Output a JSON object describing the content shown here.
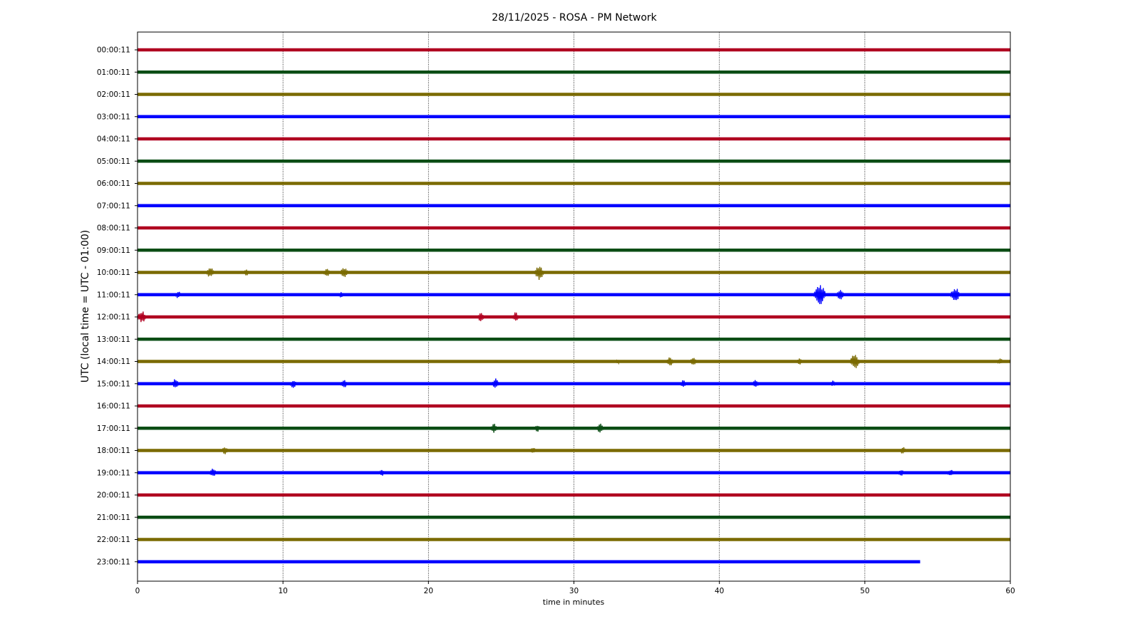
{
  "chart_data": {
    "type": "line",
    "title": "28/11/2025 - ROSA - PM Network",
    "xlabel": "time in minutes",
    "ylabel": "UTC (local time = UTC - 01:00)",
    "xlim": [
      0,
      60
    ],
    "x_ticks": [
      0,
      10,
      20,
      30,
      40,
      50,
      60
    ],
    "grid": "vertical dotted at x ticks",
    "color_cycle": [
      "#b00020",
      "#0a4d14",
      "#7a6a00",
      "#0000ff"
    ],
    "rows": [
      {
        "label": "00:00:11",
        "end_min": 60,
        "events": []
      },
      {
        "label": "01:00:11",
        "end_min": 60,
        "events": []
      },
      {
        "label": "02:00:11",
        "end_min": 60,
        "events": []
      },
      {
        "label": "03:00:11",
        "end_min": 60,
        "events": []
      },
      {
        "label": "04:00:11",
        "end_min": 60,
        "events": []
      },
      {
        "label": "05:00:11",
        "end_min": 60,
        "events": []
      },
      {
        "label": "06:00:11",
        "end_min": 60,
        "events": []
      },
      {
        "label": "07:00:11",
        "end_min": 60,
        "events": []
      },
      {
        "label": "08:00:11",
        "end_min": 60,
        "events": []
      },
      {
        "label": "09:00:11",
        "end_min": 60,
        "events": []
      },
      {
        "label": "10:00:11",
        "end_min": 60,
        "events": [
          [
            5,
            0.5
          ],
          [
            7.5,
            0.3
          ],
          [
            13,
            0.4
          ],
          [
            14.2,
            0.5
          ],
          [
            27.6,
            0.7
          ]
        ]
      },
      {
        "label": "11:00:11",
        "end_min": 60,
        "events": [
          [
            2.8,
            0.35
          ],
          [
            14,
            0.3
          ],
          [
            46.9,
            1.0
          ],
          [
            48.3,
            0.5
          ],
          [
            56.2,
            0.7
          ]
        ]
      },
      {
        "label": "12:00:11",
        "end_min": 60,
        "events": [
          [
            0.3,
            0.6
          ],
          [
            23.6,
            0.45
          ],
          [
            26,
            0.45
          ]
        ]
      },
      {
        "label": "13:00:11",
        "end_min": 60,
        "events": []
      },
      {
        "label": "14:00:11",
        "end_min": 60,
        "events": [
          [
            33,
            0.2
          ],
          [
            36.6,
            0.45
          ],
          [
            38.2,
            0.4
          ],
          [
            45.5,
            0.3
          ],
          [
            49.3,
            0.7
          ],
          [
            59.3,
            0.3
          ]
        ]
      },
      {
        "label": "15:00:11",
        "end_min": 60,
        "events": [
          [
            2.6,
            0.45
          ],
          [
            10.7,
            0.4
          ],
          [
            14.2,
            0.45
          ],
          [
            24.6,
            0.5
          ],
          [
            37.5,
            0.35
          ],
          [
            42.5,
            0.4
          ],
          [
            47.8,
            0.3
          ]
        ]
      },
      {
        "label": "16:00:11",
        "end_min": 60,
        "events": []
      },
      {
        "label": "17:00:11",
        "end_min": 60,
        "events": [
          [
            24.5,
            0.45
          ],
          [
            27.5,
            0.35
          ],
          [
            31.8,
            0.45
          ]
        ]
      },
      {
        "label": "18:00:11",
        "end_min": 60,
        "events": [
          [
            6,
            0.35
          ],
          [
            27.2,
            0.3
          ],
          [
            52.6,
            0.35
          ]
        ]
      },
      {
        "label": "19:00:11",
        "end_min": 60,
        "events": [
          [
            5.2,
            0.45
          ],
          [
            16.8,
            0.3
          ],
          [
            52.5,
            0.3
          ],
          [
            55.9,
            0.35
          ]
        ]
      },
      {
        "label": "20:00:11",
        "end_min": 60,
        "events": []
      },
      {
        "label": "21:00:11",
        "end_min": 60,
        "events": []
      },
      {
        "label": "22:00:11",
        "end_min": 60,
        "events": []
      },
      {
        "label": "23:00:11",
        "end_min": 53.8,
        "events": []
      }
    ]
  }
}
